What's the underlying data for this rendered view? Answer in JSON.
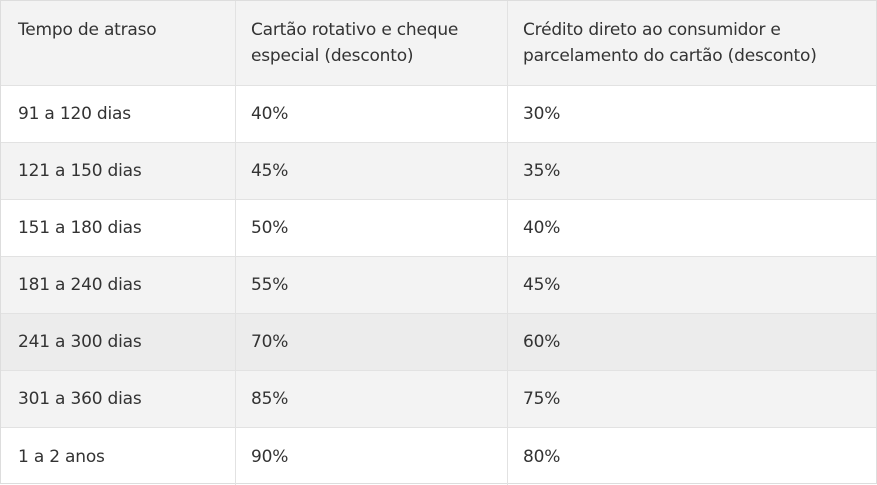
{
  "table": {
    "headers": [
      "Tempo de atraso",
      "Cartão rotativo e cheque especial (desconto)",
      "Crédito direto ao consumidor e parcelamento do cartão (desconto)"
    ],
    "rows": [
      [
        "91 a 120 dias",
        "40%",
        "30%"
      ],
      [
        "121 a 150 dias",
        "45%",
        "35%"
      ],
      [
        "151 a 180 dias",
        "50%",
        "40%"
      ],
      [
        "181 a 240 dias",
        "55%",
        "45%"
      ],
      [
        "241 a 300 dias",
        "70%",
        "60%"
      ],
      [
        "301 a 360 dias",
        "85%",
        "75%"
      ],
      [
        "1 a 2 anos",
        "90%",
        "80%"
      ]
    ]
  }
}
